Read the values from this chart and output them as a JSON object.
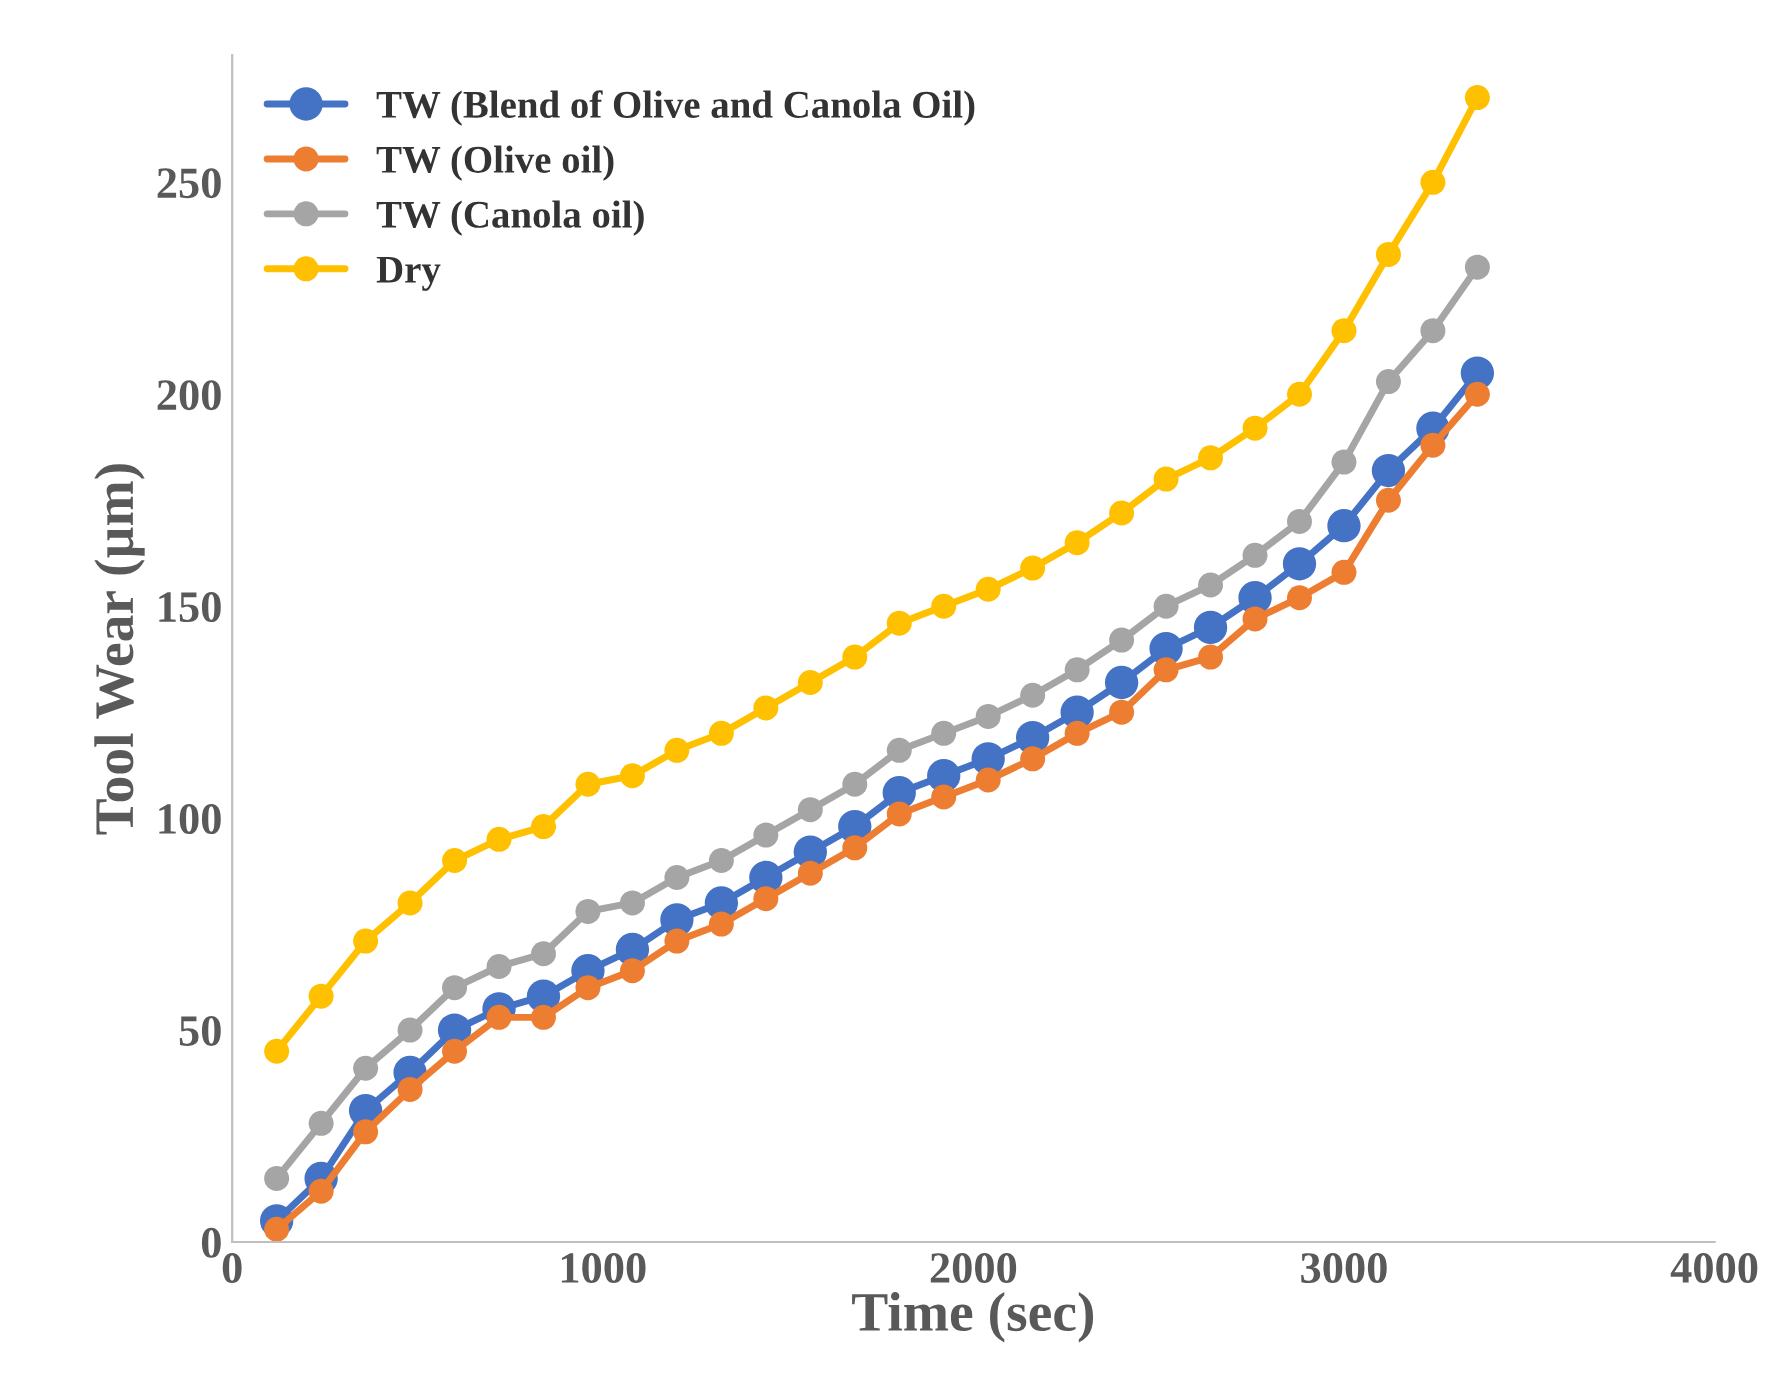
{
  "chart_data": {
    "type": "line",
    "xlabel": "Time (sec)",
    "ylabel": "Tool Wear (µm)",
    "x": [
      120,
      240,
      360,
      480,
      600,
      720,
      840,
      960,
      1080,
      1200,
      1320,
      1440,
      1560,
      1680,
      1800,
      1920,
      2040,
      2160,
      2280,
      2400,
      2520,
      2640,
      2760,
      2880,
      3000,
      3120,
      3240,
      3360
    ],
    "series": [
      {
        "name": "TW (Blend of Olive and Canola Oil)",
        "color": "#4472c4",
        "values": [
          5,
          15,
          31,
          40,
          50,
          55,
          58,
          64,
          69,
          76,
          80,
          86,
          92,
          98,
          106,
          110,
          114,
          119,
          125,
          132,
          140,
          145,
          152,
          160,
          169,
          182,
          192,
          205
        ]
      },
      {
        "name": "TW (Olive oil)",
        "color": "#ed7d31",
        "values": [
          3,
          12,
          26,
          36,
          45,
          53,
          53,
          60,
          64,
          71,
          75,
          81,
          87,
          93,
          101,
          105,
          109,
          114,
          120,
          125,
          135,
          138,
          147,
          152,
          158,
          175,
          188,
          200
        ]
      },
      {
        "name": "TW (Canola oil)",
        "color": "#a5a5a5",
        "values": [
          15,
          28,
          41,
          50,
          60,
          65,
          68,
          78,
          80,
          86,
          90,
          96,
          102,
          108,
          116,
          120,
          124,
          129,
          135,
          142,
          150,
          155,
          162,
          170,
          184,
          203,
          215,
          230
        ]
      },
      {
        "name": "Dry",
        "color": "#ffc000",
        "values": [
          45,
          58,
          71,
          80,
          90,
          95,
          98,
          108,
          110,
          116,
          120,
          126,
          132,
          138,
          146,
          150,
          154,
          159,
          165,
          172,
          180,
          185,
          192,
          200,
          215,
          233,
          250,
          270
        ]
      }
    ],
    "xlim": [
      0,
      4000
    ],
    "xticks": [
      0,
      1000,
      2000,
      3000,
      4000
    ],
    "ylim": [
      0,
      280
    ],
    "yticks": [
      0,
      50,
      100,
      150,
      200,
      250
    ],
    "grid": false,
    "legend": "top left",
    "marker": "circle",
    "line_style": "solid"
  }
}
